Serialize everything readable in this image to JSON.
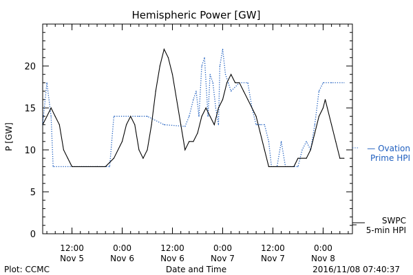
{
  "chart_data": {
    "type": "line",
    "title": "Hemispheric Power [GW]",
    "ylabel": "P [GW]",
    "xlabel": "Date and Time",
    "ylim": [
      0,
      25
    ],
    "y_ticks": [
      0,
      5,
      10,
      15,
      20
    ],
    "y_tick_labels": [
      "0",
      "5",
      "10",
      "15",
      "20"
    ],
    "xlim": [
      "2016-11-05 05:00",
      "2016-11-08 07:00"
    ],
    "x_ticks": [
      {
        "x": "2016-11-05 12:00",
        "time": "12:00",
        "date": "Nov 5"
      },
      {
        "x": "2016-11-06 00:00",
        "time": "0:00",
        "date": "Nov 6"
      },
      {
        "x": "2016-11-06 12:00",
        "time": "12:00",
        "date": "Nov 6"
      },
      {
        "x": "2016-11-07 00:00",
        "time": "0:00",
        "date": "Nov 7"
      },
      {
        "x": "2016-11-07 12:00",
        "time": "12:00",
        "date": "Nov 7"
      },
      {
        "x": "2016-11-08 00:00",
        "time": "0:00",
        "date": "Nov 8"
      }
    ],
    "grid": false,
    "series": [
      {
        "legend_lines": [
          "— Ovation",
          "Prime HPI"
        ],
        "color": "#1f5fbf",
        "style": "dotted",
        "points": [
          [
            "2016-11-05 05:00",
            13
          ],
          [
            "2016-11-05 06:00",
            18
          ],
          [
            "2016-11-05 07:00",
            14
          ],
          [
            "2016-11-05 07:30",
            8
          ],
          [
            "2016-11-05 12:00",
            8
          ],
          [
            "2016-11-05 18:00",
            8
          ],
          [
            "2016-11-05 21:00",
            8
          ],
          [
            "2016-11-05 22:00",
            14
          ],
          [
            "2016-11-06 04:00",
            14
          ],
          [
            "2016-11-06 06:00",
            14
          ],
          [
            "2016-11-06 10:00",
            13
          ],
          [
            "2016-11-06 15:00",
            12.8
          ],
          [
            "2016-11-06 16:00",
            14
          ],
          [
            "2016-11-06 17:00",
            16
          ],
          [
            "2016-11-06 17:40",
            17
          ],
          [
            "2016-11-06 18:20",
            14
          ],
          [
            "2016-11-06 19:00",
            20
          ],
          [
            "2016-11-06 19:40",
            21
          ],
          [
            "2016-11-06 20:30",
            14
          ],
          [
            "2016-11-06 21:00",
            19
          ],
          [
            "2016-11-06 21:40",
            18
          ],
          [
            "2016-11-06 22:20",
            15
          ],
          [
            "2016-11-06 23:00",
            13
          ],
          [
            "2016-11-06 23:20",
            20
          ],
          [
            "2016-11-07 00:00",
            22
          ],
          [
            "2016-11-07 00:40",
            19
          ],
          [
            "2016-11-07 01:20",
            18
          ],
          [
            "2016-11-07 02:00",
            17
          ],
          [
            "2016-11-07 04:00",
            18
          ],
          [
            "2016-11-07 06:00",
            18
          ],
          [
            "2016-11-07 07:00",
            15
          ],
          [
            "2016-11-07 08:00",
            13
          ],
          [
            "2016-11-07 09:00",
            13
          ],
          [
            "2016-11-07 10:00",
            13
          ],
          [
            "2016-11-07 11:00",
            11
          ],
          [
            "2016-11-07 11:40",
            8
          ],
          [
            "2016-11-07 13:00",
            8
          ],
          [
            "2016-11-07 14:00",
            11
          ],
          [
            "2016-11-07 15:00",
            8
          ],
          [
            "2016-11-07 18:00",
            8
          ],
          [
            "2016-11-07 19:00",
            10
          ],
          [
            "2016-11-07 20:00",
            11
          ],
          [
            "2016-11-07 21:00",
            10
          ],
          [
            "2016-11-07 22:00",
            13
          ],
          [
            "2016-11-07 23:00",
            17
          ],
          [
            "2016-11-08 00:00",
            18
          ],
          [
            "2016-11-08 02:00",
            18
          ],
          [
            "2016-11-08 05:00",
            18
          ]
        ]
      },
      {
        "legend_lines": [
          "SWPC",
          "5-min HPI"
        ],
        "color": "#000000",
        "style": "solid",
        "points": [
          [
            "2016-11-05 05:00",
            13
          ],
          [
            "2016-11-05 06:00",
            14
          ],
          [
            "2016-11-05 07:00",
            15
          ],
          [
            "2016-11-05 08:00",
            14
          ],
          [
            "2016-11-05 09:00",
            13
          ],
          [
            "2016-11-05 10:00",
            10
          ],
          [
            "2016-11-05 11:00",
            9
          ],
          [
            "2016-11-05 12:00",
            8
          ],
          [
            "2016-11-05 18:00",
            8
          ],
          [
            "2016-11-05 20:00",
            8
          ],
          [
            "2016-11-05 22:00",
            9
          ],
          [
            "2016-11-06 00:00",
            11
          ],
          [
            "2016-11-06 01:00",
            13
          ],
          [
            "2016-11-06 02:00",
            14
          ],
          [
            "2016-11-06 03:00",
            13
          ],
          [
            "2016-11-06 04:00",
            10
          ],
          [
            "2016-11-06 05:00",
            9
          ],
          [
            "2016-11-06 06:00",
            10
          ],
          [
            "2016-11-06 07:00",
            13
          ],
          [
            "2016-11-06 08:00",
            17
          ],
          [
            "2016-11-06 09:00",
            20
          ],
          [
            "2016-11-06 10:00",
            22
          ],
          [
            "2016-11-06 11:00",
            21
          ],
          [
            "2016-11-06 12:00",
            19
          ],
          [
            "2016-11-06 13:00",
            16
          ],
          [
            "2016-11-06 14:00",
            13
          ],
          [
            "2016-11-06 15:00",
            10
          ],
          [
            "2016-11-06 16:00",
            11
          ],
          [
            "2016-11-06 17:00",
            11
          ],
          [
            "2016-11-06 18:00",
            12
          ],
          [
            "2016-11-06 19:00",
            14
          ],
          [
            "2016-11-06 20:00",
            15
          ],
          [
            "2016-11-06 21:00",
            14
          ],
          [
            "2016-11-06 22:00",
            13
          ],
          [
            "2016-11-06 23:00",
            15
          ],
          [
            "2016-11-07 00:00",
            16
          ],
          [
            "2016-11-07 01:00",
            18
          ],
          [
            "2016-11-07 02:00",
            19
          ],
          [
            "2016-11-07 03:00",
            18
          ],
          [
            "2016-11-07 04:00",
            18
          ],
          [
            "2016-11-07 05:00",
            17
          ],
          [
            "2016-11-07 06:00",
            16
          ],
          [
            "2016-11-07 07:00",
            15
          ],
          [
            "2016-11-07 08:00",
            14
          ],
          [
            "2016-11-07 09:00",
            12
          ],
          [
            "2016-11-07 10:00",
            10
          ],
          [
            "2016-11-07 11:00",
            8
          ],
          [
            "2016-11-07 13:00",
            8
          ],
          [
            "2016-11-07 15:00",
            8
          ],
          [
            "2016-11-07 17:00",
            8
          ],
          [
            "2016-11-07 18:00",
            9
          ],
          [
            "2016-11-07 20:00",
            9
          ],
          [
            "2016-11-07 21:00",
            10
          ],
          [
            "2016-11-07 22:00",
            12
          ],
          [
            "2016-11-07 23:00",
            14
          ],
          [
            "2016-11-08 00:00",
            15
          ],
          [
            "2016-11-08 00:30",
            16
          ],
          [
            "2016-11-08 01:00",
            15
          ],
          [
            "2016-11-08 02:00",
            13
          ],
          [
            "2016-11-08 03:00",
            11
          ],
          [
            "2016-11-08 04:00",
            9
          ],
          [
            "2016-11-08 05:00",
            9
          ]
        ]
      }
    ]
  },
  "footer": {
    "left": "Plot: CCMC",
    "right": "2016/11/08 07:40:37"
  }
}
